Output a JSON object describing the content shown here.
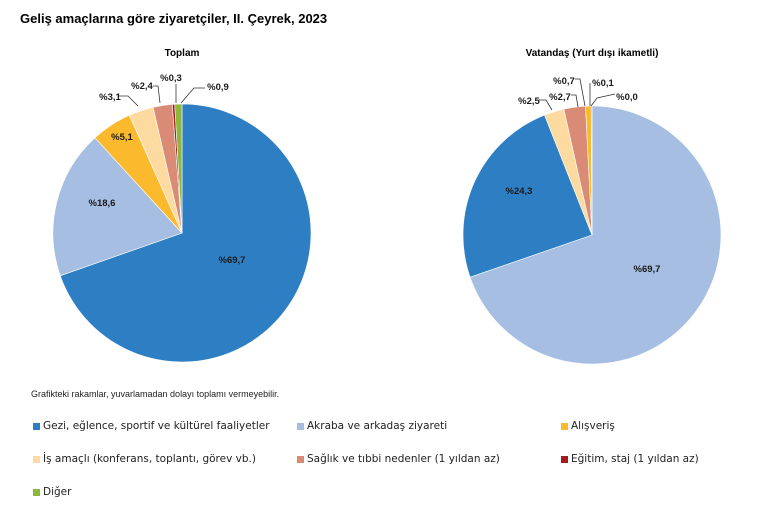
{
  "title": "Geliş amaçlarına göre ziyaretçiler, II. Çeyrek, 2023",
  "note": "Grafikteki rakamlar, yuvarlamadan dolayı toplamı vermeyebilir.",
  "chart_data": [
    {
      "type": "pie",
      "title": "Toplam",
      "label_prefix": "%",
      "categories": [
        "Gezi, eğlence, sportif ve kültürel faaliyetler",
        "Akraba ve arkadaş ziyareti",
        "Alışveriş",
        "İş amaçlı (konferans, toplantı, görev vb.)",
        "Sağlık ve tıbbi nedenler (1 yıldan az)",
        "Eğitim, staj (1 yıldan az)",
        "Diğer"
      ],
      "values": [
        69.7,
        18.6,
        5.1,
        3.1,
        2.4,
        0.3,
        0.9
      ],
      "labels": [
        "%69,7",
        "%18,6",
        "%5,1",
        "%3,1",
        "%2,4",
        "%0,3",
        "%0,9"
      ]
    },
    {
      "type": "pie",
      "title": "Vatandaş (Yurt dışı ikametli)",
      "label_prefix": "%",
      "categories": [
        "Gezi, eğlence, sportif ve kültürel faaliyetler",
        "Akraba ve arkadaş ziyareti",
        "Alışveriş",
        "İş amaçlı (konferans, toplantı, görev vb.)",
        "Sağlık ve tıbbi nedenler (1 yıldan az)",
        "Eğitim, staj (1 yıldan az)",
        "Diğer"
      ],
      "values": [
        24.3,
        69.7,
        0.7,
        2.5,
        2.7,
        0.1,
        0.0
      ],
      "labels": [
        "%24,3",
        "%69,7",
        "%0,7",
        "%2,5",
        "%2,7",
        "%0,1",
        "%0,0"
      ]
    }
  ],
  "legend": [
    {
      "label": "Gezi, eğlence, sportif ve kültürel faaliyetler",
      "color": "#2E7EC4"
    },
    {
      "label": "Akraba ve arkadaş ziyareti",
      "color": "#A5BEE2"
    },
    {
      "label": "Alışveriş",
      "color": "#FBBA2D"
    },
    {
      "label": "İş amaçlı (konferans, toplantı, görev vb.)",
      "color": "#FDDBA0"
    },
    {
      "label": "Sağlık ve tıbbi nedenler (1 yıldan az)",
      "color": "#D98B75"
    },
    {
      "label": "Eğitim, staj (1 yıldan az)",
      "color": "#A11D21"
    },
    {
      "label": "Diğer",
      "color": "#8DB83A"
    }
  ]
}
